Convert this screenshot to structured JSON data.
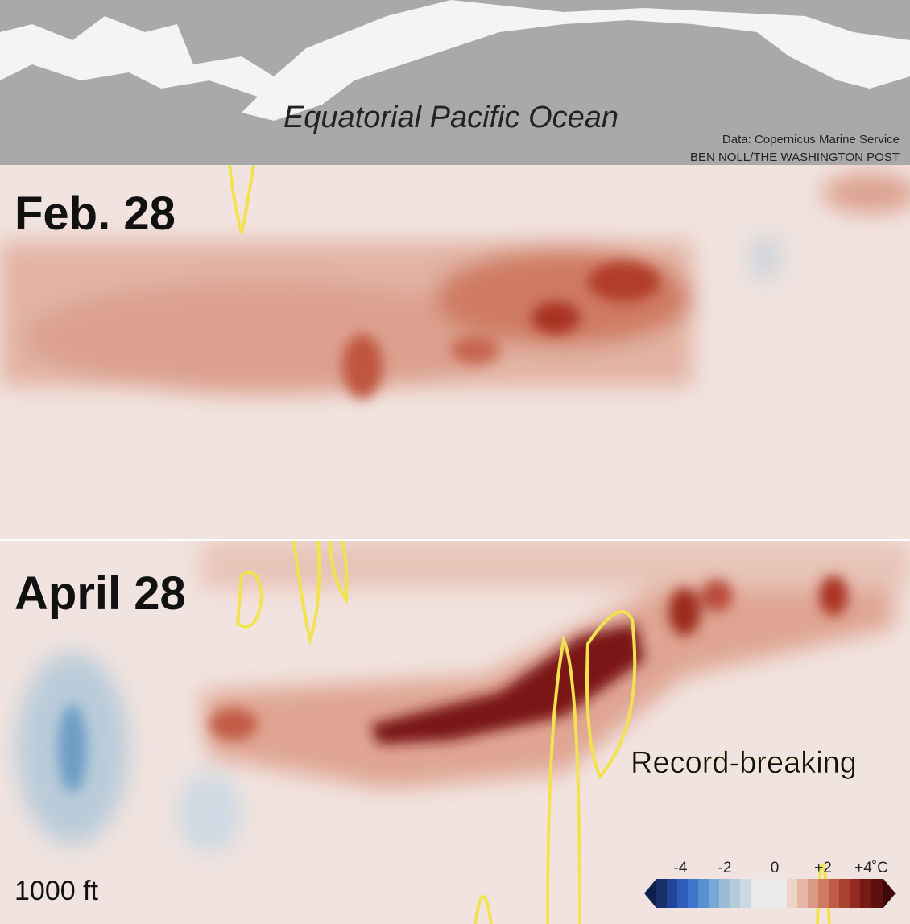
{
  "header": {
    "title": "Equatorial Pacific Ocean",
    "source": "Data: Copernicus Marine Service",
    "credit": "BEN NOLL/THE WASHINGTON POST"
  },
  "panels": [
    {
      "label": "Feb. 28"
    },
    {
      "label": "April 28",
      "annotation": "Record-breaking"
    }
  ],
  "depth_label": "1000 ft",
  "legend": {
    "ticks": [
      "-4",
      "-2",
      "0",
      "+2",
      "+4˚C"
    ]
  }
}
